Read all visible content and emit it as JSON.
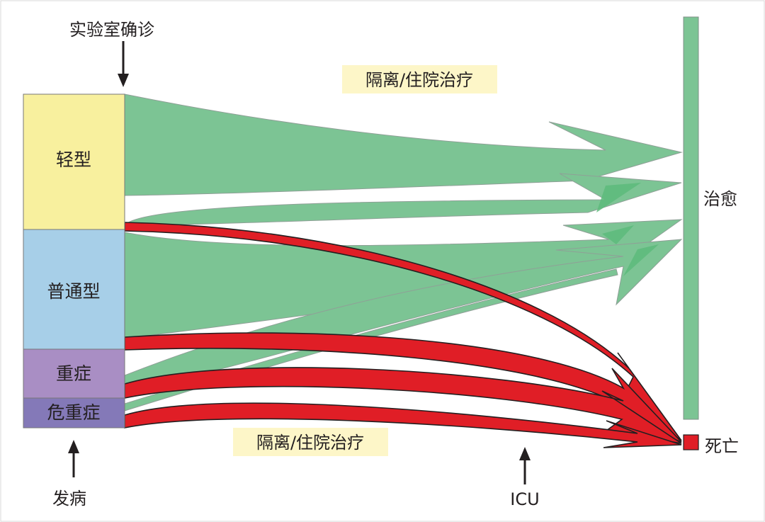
{
  "labels": {
    "top_event": "实验室确诊",
    "bottom_event": "发病",
    "icu": "ICU",
    "tag_upper": "隔离/住院治疗",
    "tag_lower": "隔离/住院治疗",
    "outcome_cure": "治愈",
    "outcome_death": "死亡"
  },
  "categories": [
    {
      "name": "轻型",
      "color": "#f8f09e"
    },
    {
      "name": "普通型",
      "color": "#a7cfe8"
    },
    {
      "name": "重症",
      "color": "#a98ec4"
    },
    {
      "name": "危重症",
      "color": "#8479b8"
    }
  ],
  "colors": {
    "cure_flow": "#7cc494",
    "death_flow": "#e01e26",
    "cure_bar": "#7cc494",
    "death_box": "#e01e26",
    "tag_background": "#fdf6c8"
  }
}
